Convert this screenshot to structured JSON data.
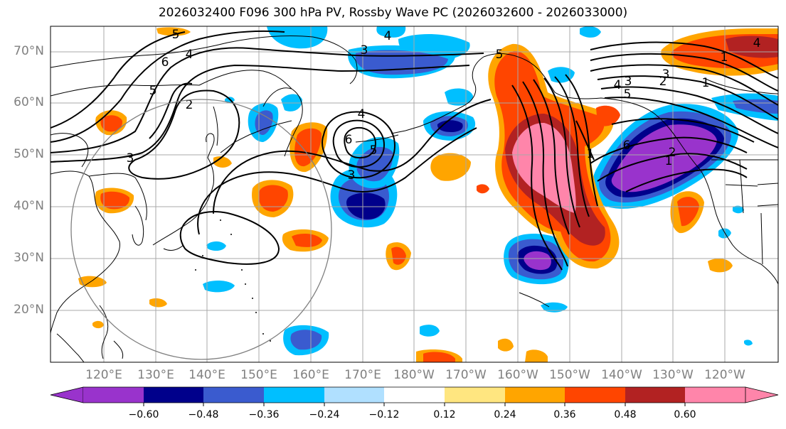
{
  "title": "2026032400 F096 300 hPa PV, Rossby Wave PC (2026032600 - 2026033000)",
  "lat_labels": [
    "70°N",
    "60°N",
    "50°N",
    "40°N",
    "30°N",
    "20°N"
  ],
  "lon_labels": [
    "120°E",
    "130°E",
    "140°E",
    "150°E",
    "160°E",
    "170°E",
    "180°W",
    "170°W",
    "160°W",
    "150°W",
    "140°W",
    "130°W",
    "120°W"
  ],
  "colorbar": {
    "labels": [
      "−0.60",
      "−0.48",
      "−0.36",
      "−0.24",
      "−0.12",
      "0.12",
      "0.24",
      "0.36",
      "0.48",
      "0.60"
    ],
    "colors": [
      "#9933cc",
      "#00008b",
      "#3a5bcf",
      "#00bfff",
      "#b0e0ff",
      "#ffffff",
      "#ffe680",
      "#ffa500",
      "#ff4500",
      "#b22222",
      "#ff85aa"
    ],
    "extend": "both"
  },
  "contour_labels": [
    "5",
    "4",
    "6",
    "5",
    "2",
    "3",
    "4",
    "6",
    "5",
    "3",
    "3",
    "4",
    "1",
    "6",
    "2",
    "1",
    "5",
    "1",
    "4",
    "3",
    "2",
    "1",
    "4",
    "5",
    "3"
  ]
}
